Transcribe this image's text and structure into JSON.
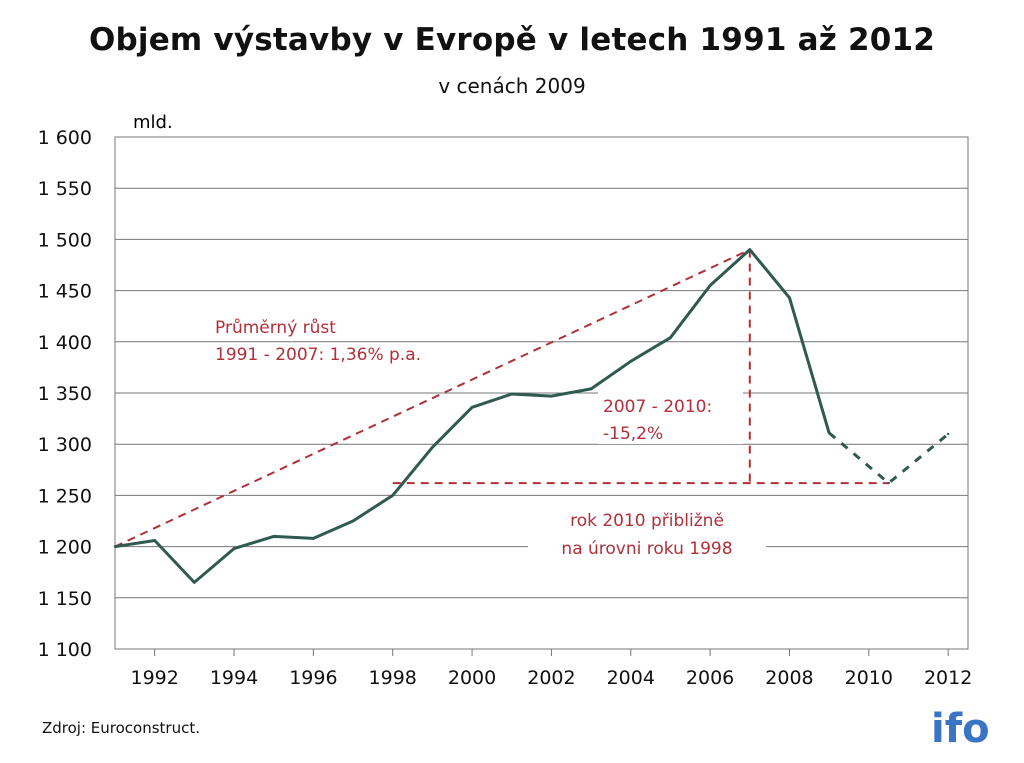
{
  "chart_data": {
    "type": "line",
    "title": "Objem výstavby v Evropě v letech 1991 až 2012",
    "subtitle": "v cenách 2009",
    "unit_label": "mld.",
    "xlim": [
      1991,
      2012.5
    ],
    "ylim": [
      1100,
      1600
    ],
    "y_ticks": [
      1100,
      1150,
      1200,
      1250,
      1300,
      1350,
      1400,
      1450,
      1500,
      1550,
      1600
    ],
    "y_tick_labels": [
      "1 100",
      "1 150",
      "1 200",
      "1 250",
      "1 300",
      "1 350",
      "1 400",
      "1 450",
      "1 500",
      "1 550",
      "1 600"
    ],
    "x_ticks": [
      1992,
      1994,
      1996,
      1998,
      2000,
      2002,
      2004,
      2006,
      2008,
      2010,
      2012
    ],
    "x_tick_labels": [
      "1992",
      "1994",
      "1996",
      "1998",
      "2000",
      "2002",
      "2004",
      "2006",
      "2008",
      "2010",
      "2012"
    ],
    "grid": "horizontal",
    "series": [
      {
        "style": "solid",
        "color": "#2f5a4f",
        "x": [
          1991,
          1992,
          1993,
          1994,
          1995,
          1996,
          1997,
          1998,
          1999,
          2000,
          2001,
          2002,
          2003,
          2004,
          2005,
          2006,
          2007,
          2008,
          2009
        ],
        "values": [
          1200,
          1206,
          1165,
          1198,
          1210,
          1208,
          1225,
          1250,
          1297,
          1336,
          1349,
          1347,
          1354,
          1381,
          1404,
          1455,
          1490,
          1443,
          1311
        ]
      },
      {
        "style": "dashed",
        "color": "#2f5a4f",
        "x": [
          2009,
          2010.5,
          2012
        ],
        "values": [
          1311,
          1262,
          1310
        ]
      }
    ],
    "annotations": {
      "trend_label_1": "Průměrný růst",
      "trend_label_2": "1991 - 2007:  1,36% p.a.",
      "drop_label_1": "2007 - 2010:",
      "drop_label_2": "-15,2%",
      "level_label_1": "rok 2010 přibližně",
      "level_label_2": "na úrovni roku 1998",
      "color": "#b0303a",
      "trend_line": {
        "x": [
          1991,
          2007
        ],
        "y": [
          1200,
          1490
        ]
      },
      "drop_line": {
        "x": 2007,
        "y": [
          1490,
          1262
        ]
      },
      "level_line": {
        "x": [
          1998,
          2010.5
        ],
        "y": 1262
      }
    }
  },
  "footer": {
    "source": "Zdroj: Euroconstruct.",
    "logo": "ifo",
    "logo_color": "#3a74c4"
  }
}
